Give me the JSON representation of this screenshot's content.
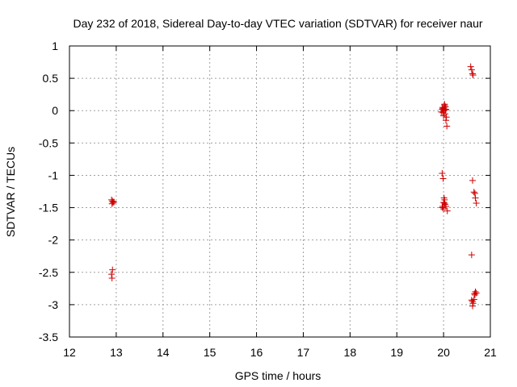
{
  "chart_data": {
    "type": "scatter",
    "title": "Day 232 of 2018, Sidereal Day-to-day VTEC variation (SDTVAR) for receiver naur",
    "xlabel": "GPS time / hours",
    "ylabel": "SDTVAR / TECUs",
    "xlim": [
      12,
      21
    ],
    "ylim": [
      -3.5,
      1
    ],
    "xticks": [
      12,
      13,
      14,
      15,
      16,
      17,
      18,
      19,
      20,
      21
    ],
    "yticks": [
      -3.5,
      -3,
      -2.5,
      -2,
      -1.5,
      -1,
      -0.5,
      0,
      0.5,
      1
    ],
    "xtick_labels": [
      "12",
      "13",
      "14",
      "15",
      "16",
      "17",
      "18",
      "19",
      "20",
      "21"
    ],
    "ytick_labels": [
      "-3.5",
      "-3",
      "-2.5",
      "-2",
      "-1.5",
      "-1",
      "-0.5",
      "0",
      "0.5",
      "1"
    ],
    "grid": true,
    "marker": "+",
    "marker_color": "#cc0000",
    "series": [
      {
        "name": "SDTVAR",
        "points": [
          [
            12.9,
            -1.38
          ],
          [
            12.92,
            -1.4
          ],
          [
            12.93,
            -1.42
          ],
          [
            12.95,
            -1.41
          ],
          [
            12.91,
            -1.44
          ],
          [
            12.92,
            -2.46
          ],
          [
            12.9,
            -2.53
          ],
          [
            12.91,
            -2.59
          ],
          [
            19.95,
            -0.02
          ],
          [
            19.97,
            0.02
          ],
          [
            19.98,
            0.05
          ],
          [
            19.99,
            -0.03
          ],
          [
            20.0,
            0.0
          ],
          [
            20.01,
            0.04
          ],
          [
            20.02,
            0.08
          ],
          [
            20.03,
            -0.05
          ],
          [
            20.04,
            0.06
          ],
          [
            20.05,
            0.02
          ],
          [
            20.06,
            -0.1
          ],
          [
            20.02,
            0.1
          ],
          [
            20.0,
            -0.08
          ],
          [
            20.07,
            -0.24
          ],
          [
            20.05,
            -0.15
          ],
          [
            19.98,
            0.03
          ],
          [
            20.04,
            0.01
          ],
          [
            19.97,
            -0.97
          ],
          [
            19.99,
            -1.05
          ],
          [
            20.01,
            -1.35
          ],
          [
            20.02,
            -1.38
          ],
          [
            20.0,
            -1.42
          ],
          [
            20.03,
            -1.45
          ],
          [
            19.98,
            -1.48
          ],
          [
            19.97,
            -1.5
          ],
          [
            20.0,
            -1.52
          ],
          [
            20.05,
            -1.48
          ],
          [
            20.08,
            -1.55
          ],
          [
            20.02,
            -1.43
          ],
          [
            20.58,
            0.68
          ],
          [
            20.6,
            0.63
          ],
          [
            20.62,
            0.57
          ],
          [
            20.63,
            0.55
          ],
          [
            20.62,
            -1.08
          ],
          [
            20.65,
            -1.26
          ],
          [
            20.67,
            -1.28
          ],
          [
            20.68,
            -1.35
          ],
          [
            20.7,
            -1.43
          ],
          [
            20.6,
            -2.23
          ],
          [
            20.6,
            -2.93
          ],
          [
            20.62,
            -2.95
          ],
          [
            20.63,
            -2.98
          ],
          [
            20.62,
            -3.02
          ],
          [
            20.65,
            -2.92
          ],
          [
            20.67,
            -2.85
          ],
          [
            20.68,
            -2.8
          ],
          [
            20.7,
            -2.82
          ],
          [
            20.66,
            -2.83
          ]
        ]
      }
    ]
  }
}
